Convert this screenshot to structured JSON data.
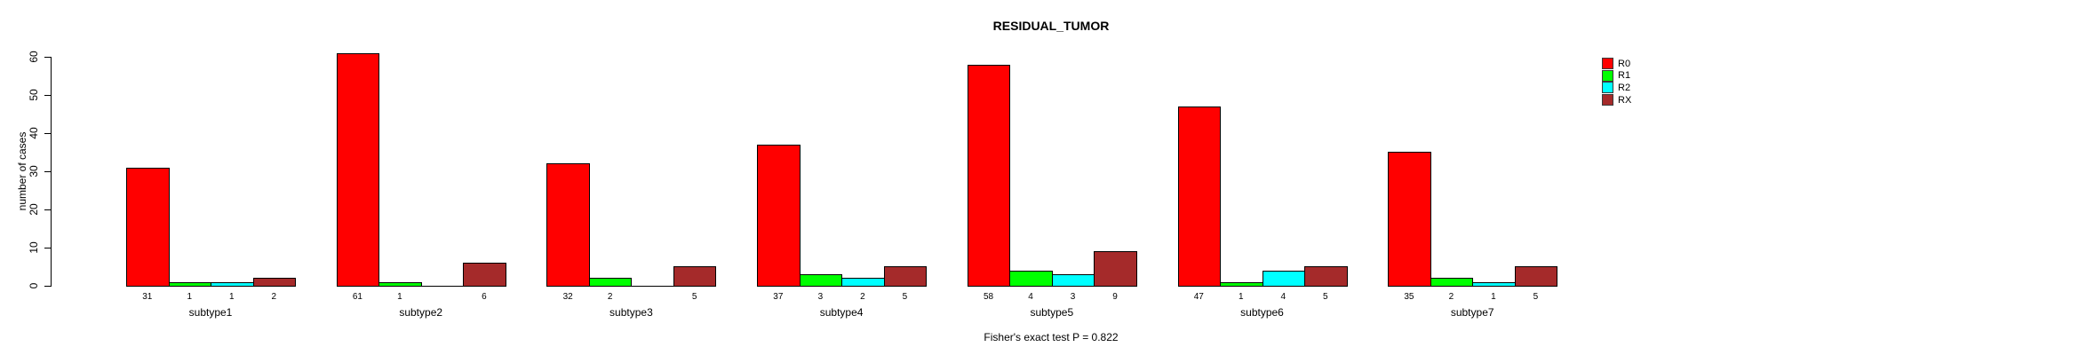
{
  "page": {
    "background_color": "#FFFFFF"
  },
  "chart_data": {
    "type": "bar",
    "title": "RESIDUAL_TUMOR",
    "ylabel": "number of cases",
    "xlabel": "",
    "footnote": "Fisher's exact test P = 0.822",
    "ylim": [
      0,
      60
    ],
    "yticks": [
      0,
      10,
      20,
      30,
      40,
      50,
      60
    ],
    "grid": false,
    "legend_position": "top-right",
    "bar_value_labels_shown": true,
    "zero_value_bars_hidden": true,
    "axis_color": "#000000",
    "bar_border_color": "#000000",
    "categories": [
      "subtype1",
      "subtype2",
      "subtype3",
      "subtype4",
      "subtype5",
      "subtype6",
      "subtype7"
    ],
    "series": [
      {
        "name": "R0",
        "color": "#FF0000",
        "values": [
          31,
          61,
          32,
          37,
          58,
          47,
          35
        ]
      },
      {
        "name": "R1",
        "color": "#00FF00",
        "values": [
          1,
          1,
          2,
          3,
          4,
          1,
          2
        ]
      },
      {
        "name": "R2",
        "color": "#00FFFF",
        "values": [
          1,
          0,
          0,
          2,
          3,
          4,
          1
        ]
      },
      {
        "name": "RX",
        "color": "#A52A2A",
        "values": [
          2,
          6,
          5,
          5,
          9,
          5,
          5
        ]
      }
    ]
  }
}
